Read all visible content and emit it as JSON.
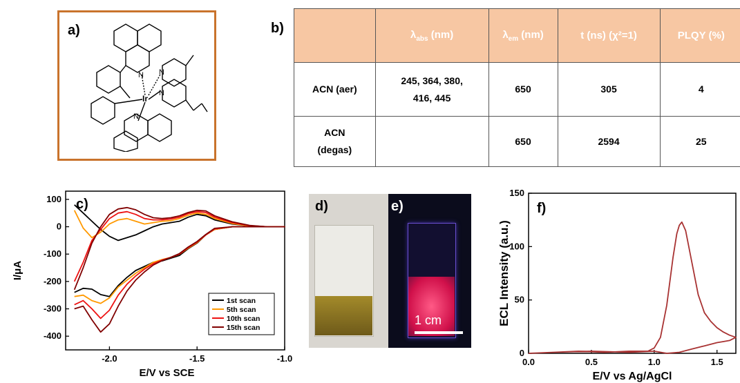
{
  "panel_labels": {
    "a": "a)",
    "b": "b)",
    "c": "c)",
    "d": "d)",
    "e": "e)",
    "f": "f)"
  },
  "structure": {
    "metal_label": "Ir",
    "n_label": "N"
  },
  "table": {
    "headers": [
      "",
      "λabs (nm)",
      "λem (nm)",
      "t (ns) (χ²=1)",
      "PLQY (%)"
    ],
    "header_parts": [
      {
        "main": "",
        "sub": "",
        "suffix": ""
      },
      {
        "main": "λ",
        "sub": "abs",
        "suffix": " (nm)"
      },
      {
        "main": "λ",
        "sub": "em",
        "suffix": " (nm)"
      },
      {
        "main": "t (ns) (χ²=1)",
        "sub": "",
        "suffix": ""
      },
      {
        "main": "PLQY (%)",
        "sub": "",
        "suffix": ""
      }
    ],
    "rows": [
      [
        "ACN (aer)",
        "245, 364, 380, 416, 445",
        "650",
        "305",
        "4"
      ],
      [
        "ACN (degas)",
        "",
        "650",
        "2594",
        "25"
      ]
    ]
  },
  "photo_e": {
    "scale_label": "1 cm"
  },
  "colors": {
    "table_header_bg": "#f7c7a3",
    "frame": "#c9732c",
    "ecl_line": "#a83232"
  },
  "chart_data": [
    {
      "type": "line",
      "title": "",
      "xlabel": "E/V vs SCE",
      "ylabel": "I/μA",
      "xlim": [
        -2.25,
        -1.0
      ],
      "ylim": [
        -450,
        130
      ],
      "xticks": [
        -2.0,
        -1.5,
        -1.0
      ],
      "xtick_labels": [
        "-2.0",
        "-1.5",
        "-1.0"
      ],
      "yticks": [
        100,
        0,
        -100,
        -200,
        -300,
        -400
      ],
      "ytick_labels": [
        "100",
        "0",
        "-100",
        "-200",
        "-300",
        "-400"
      ],
      "legend_position": "bottom-right",
      "series": [
        {
          "name": "1st scan",
          "color": "#000000",
          "x": [
            -2.2,
            -2.15,
            -2.1,
            -2.05,
            -2.0,
            -1.95,
            -1.9,
            -1.85,
            -1.8,
            -1.75,
            -1.7,
            -1.65,
            -1.6,
            -1.55,
            -1.5,
            -1.45,
            -1.4,
            -1.3,
            -1.2,
            -1.1,
            -1.0,
            -1.1,
            -1.2,
            -1.3,
            -1.4,
            -1.45,
            -1.5,
            -1.55,
            -1.6,
            -1.65,
            -1.7,
            -1.75,
            -1.8,
            -1.85,
            -1.9,
            -1.95,
            -2.0,
            -2.05,
            -2.1,
            -2.15,
            -2.2
          ],
          "y": [
            -240,
            -225,
            -228,
            -248,
            -255,
            -215,
            -185,
            -160,
            -145,
            -130,
            -125,
            -115,
            -105,
            -80,
            -60,
            -30,
            -10,
            0,
            0,
            0,
            0,
            0,
            3,
            10,
            25,
            40,
            45,
            35,
            20,
            15,
            10,
            0,
            -15,
            -30,
            -40,
            -50,
            -35,
            -10,
            20,
            50,
            80
          ]
        },
        {
          "name": "5th scan",
          "color": "#ff9900",
          "x": [
            -2.2,
            -2.15,
            -2.1,
            -2.05,
            -2.0,
            -1.95,
            -1.9,
            -1.85,
            -1.8,
            -1.75,
            -1.7,
            -1.65,
            -1.6,
            -1.55,
            -1.5,
            -1.45,
            -1.4,
            -1.3,
            -1.2,
            -1.1,
            -1.0,
            -1.1,
            -1.2,
            -1.3,
            -1.4,
            -1.45,
            -1.5,
            -1.55,
            -1.6,
            -1.65,
            -1.7,
            -1.75,
            -1.8,
            -1.85,
            -1.9,
            -1.95,
            -2.0,
            -2.05,
            -2.1,
            -2.15,
            -2.2
          ],
          "y": [
            -255,
            -250,
            -270,
            -280,
            -260,
            -220,
            -195,
            -170,
            -150,
            -130,
            -120,
            -112,
            -100,
            -78,
            -58,
            -30,
            -10,
            0,
            0,
            0,
            0,
            0,
            3,
            12,
            30,
            45,
            50,
            42,
            30,
            22,
            20,
            15,
            10,
            20,
            30,
            25,
            10,
            -20,
            -40,
            -5,
            60
          ]
        },
        {
          "name": "10th scan",
          "color": "#ee1111",
          "x": [
            -2.2,
            -2.15,
            -2.1,
            -2.05,
            -2.0,
            -1.95,
            -1.9,
            -1.85,
            -1.8,
            -1.75,
            -1.7,
            -1.65,
            -1.6,
            -1.55,
            -1.5,
            -1.45,
            -1.4,
            -1.3,
            -1.2,
            -1.1,
            -1.0,
            -1.1,
            -1.2,
            -1.3,
            -1.4,
            -1.45,
            -1.5,
            -1.55,
            -1.6,
            -1.65,
            -1.7,
            -1.75,
            -1.8,
            -1.85,
            -1.9,
            -1.95,
            -2.0,
            -2.05,
            -2.1,
            -2.15,
            -2.2
          ],
          "y": [
            -285,
            -270,
            -300,
            -335,
            -305,
            -250,
            -210,
            -180,
            -155,
            -135,
            -122,
            -112,
            -100,
            -76,
            -56,
            -30,
            -8,
            0,
            0,
            0,
            0,
            0,
            4,
            15,
            35,
            52,
            55,
            48,
            35,
            28,
            25,
            25,
            30,
            45,
            55,
            50,
            30,
            -10,
            -50,
            -130,
            -200
          ]
        },
        {
          "name": "15th scan",
          "color": "#800000",
          "x": [
            -2.2,
            -2.15,
            -2.1,
            -2.05,
            -2.0,
            -1.95,
            -1.9,
            -1.85,
            -1.8,
            -1.75,
            -1.7,
            -1.65,
            -1.6,
            -1.55,
            -1.5,
            -1.45,
            -1.4,
            -1.3,
            -1.2,
            -1.1,
            -1.0,
            -1.1,
            -1.2,
            -1.3,
            -1.4,
            -1.45,
            -1.5,
            -1.55,
            -1.6,
            -1.65,
            -1.7,
            -1.75,
            -1.8,
            -1.85,
            -1.9,
            -1.95,
            -2.0,
            -2.05,
            -2.1,
            -2.15,
            -2.2
          ],
          "y": [
            -300,
            -290,
            -340,
            -385,
            -355,
            -290,
            -235,
            -195,
            -165,
            -140,
            -124,
            -112,
            -98,
            -74,
            -54,
            -28,
            -6,
            0,
            0,
            0,
            0,
            0,
            5,
            18,
            40,
            58,
            60,
            52,
            40,
            33,
            30,
            33,
            45,
            62,
            70,
            65,
            45,
            0,
            -60,
            -150,
            -230
          ]
        }
      ]
    },
    {
      "type": "line",
      "title": "",
      "xlabel": "E/V vs Ag/AgCl",
      "ylabel": "ECL Intensity (a.u.)",
      "xlim": [
        0.0,
        1.65
      ],
      "ylim": [
        0,
        150
      ],
      "xticks": [
        0.0,
        0.5,
        1.0,
        1.5
      ],
      "xtick_labels": [
        "0.0",
        "0.5",
        "1.0",
        "1.5"
      ],
      "yticks": [
        0,
        50,
        100,
        150
      ],
      "ytick_labels": [
        "0",
        "50",
        "100",
        "150"
      ],
      "series": [
        {
          "color": "#a83232",
          "x": [
            0.0,
            0.2,
            0.4,
            0.6,
            0.8,
            0.95,
            1.0,
            1.05,
            1.1,
            1.15,
            1.18,
            1.2,
            1.22,
            1.25,
            1.3,
            1.35,
            1.4,
            1.45,
            1.5,
            1.55,
            1.6,
            1.65,
            1.6,
            1.55,
            1.5,
            1.4,
            1.3,
            1.2,
            1.1,
            1.0,
            0.8,
            0.5,
            0.2,
            0.0
          ],
          "y": [
            0,
            1,
            2,
            1,
            2,
            2,
            5,
            15,
            45,
            90,
            112,
            120,
            123,
            115,
            85,
            55,
            38,
            30,
            24,
            20,
            17,
            15,
            12,
            11,
            10,
            7,
            4,
            1,
            0,
            2,
            1,
            2,
            1,
            0
          ]
        }
      ]
    }
  ]
}
